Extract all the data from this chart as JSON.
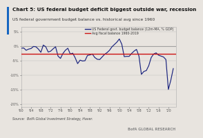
{
  "title": "Chart 5: US federal budget deficit biggest outside war, recession",
  "subtitle": "US federal government budget balance vs. historical avg since 1960",
  "source": "Source:  BofA Global Investment Strategy, Haver.",
  "watermark": "BofA GLOBAL RESEARCH",
  "legend_line1": "US Federal govt. budget balance (12m-MA, % GDP)",
  "legend_line2": "Avg fiscal balance 1960-2019",
  "avg_line_value": -2.8,
  "xlim": [
    1960,
    2023
  ],
  "ylim": [
    -21,
    6.5
  ],
  "yticks": [
    5,
    0,
    -5,
    -10,
    -15,
    -20
  ],
  "xticks": [
    1960,
    1964,
    1968,
    1972,
    1976,
    1980,
    1984,
    1988,
    1992,
    1996,
    2000,
    2004,
    2008,
    2012,
    2016,
    2020
  ],
  "xtick_labels": [
    "'60",
    "'64",
    "'68",
    "'72",
    "'76",
    "'80",
    "'84",
    "'88",
    "'92",
    "'96",
    "'00",
    "'04",
    "'08",
    "'12",
    "'16",
    "'20"
  ],
  "line_color": "#1a237e",
  "avg_color": "#cc1111",
  "title_color": "#111111",
  "subtitle_color": "#333333",
  "accent_bar_color": "#1565c0",
  "background": "#e8e4df",
  "plot_bg": "#e8e4df",
  "source_color": "#444444",
  "watermark_color": "#888888",
  "zero_line_color": "#888888",
  "years": [
    1960,
    1961,
    1962,
    1963,
    1964,
    1965,
    1966,
    1967,
    1968,
    1969,
    1970,
    1971,
    1972,
    1973,
    1974,
    1975,
    1976,
    1977,
    1978,
    1979,
    1980,
    1981,
    1982,
    1983,
    1984,
    1985,
    1986,
    1987,
    1988,
    1989,
    1990,
    1991,
    1992,
    1993,
    1994,
    1995,
    1996,
    1997,
    1998,
    1999,
    2000,
    2001,
    2002,
    2003,
    2004,
    2005,
    2006,
    2007,
    2008,
    2009,
    2010,
    2011,
    2012,
    2013,
    2014,
    2015,
    2016,
    2017,
    2018,
    2019,
    2020,
    2021,
    2022
  ],
  "values": [
    -0.8,
    -0.7,
    -1.5,
    -1.1,
    -0.9,
    -0.2,
    -0.3,
    -1.1,
    -2.2,
    0.3,
    -0.3,
    -2.1,
    -1.8,
    -1.0,
    -0.3,
    -3.5,
    -4.3,
    -2.6,
    -1.5,
    -0.8,
    -2.8,
    -2.5,
    -4.1,
    -6.1,
    -4.9,
    -5.2,
    -5.1,
    -3.3,
    -3.1,
    -2.8,
    -4.0,
    -4.6,
    -4.7,
    -3.8,
    -2.9,
    -2.3,
    -1.5,
    -0.3,
    0.5,
    1.3,
    2.4,
    0.6,
    -3.7,
    -3.6,
    -3.6,
    -2.6,
    -1.8,
    -1.2,
    -3.5,
    -9.8,
    -8.8,
    -8.5,
    -6.8,
    -4.0,
    -2.8,
    -2.4,
    -3.2,
    -3.5,
    -3.8,
    -4.7,
    -15.0,
    -11.8,
    -7.8
  ]
}
